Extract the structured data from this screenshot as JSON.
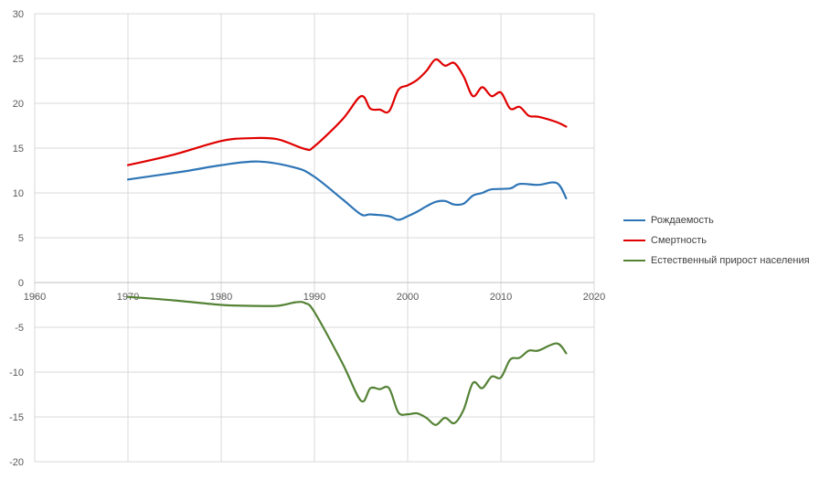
{
  "chart_data": {
    "type": "line",
    "title": "",
    "xlabel": "",
    "ylabel": "",
    "xlim": [
      1960,
      2020
    ],
    "ylim": [
      -20,
      30
    ],
    "x_ticks": [
      1960,
      1970,
      1980,
      1990,
      2000,
      2010,
      2020
    ],
    "y_ticks": [
      30,
      25,
      20,
      15,
      10,
      5,
      0,
      -5,
      -10,
      -15,
      -20
    ],
    "grid": "vertical and horizontal",
    "legend_position": "right",
    "series": [
      {
        "name": "Рождаемость",
        "color": "#2e75b6",
        "points": [
          [
            1970,
            11.5
          ],
          [
            1976,
            12.4
          ],
          [
            1980,
            13.1
          ],
          [
            1984,
            13.5
          ],
          [
            1988,
            12.8
          ],
          [
            1990,
            11.8
          ],
          [
            1993,
            9.3
          ],
          [
            1995,
            7.6
          ],
          [
            1996,
            7.6
          ],
          [
            1998,
            7.4
          ],
          [
            1999,
            7.0
          ],
          [
            2000,
            7.4
          ],
          [
            2001,
            7.9
          ],
          [
            2002,
            8.5
          ],
          [
            2003,
            9.0
          ],
          [
            2004,
            9.1
          ],
          [
            2005,
            8.7
          ],
          [
            2006,
            8.8
          ],
          [
            2007,
            9.7
          ],
          [
            2008,
            10.0
          ],
          [
            2009,
            10.4
          ],
          [
            2011,
            10.5
          ],
          [
            2012,
            11.0
          ],
          [
            2014,
            10.9
          ],
          [
            2016,
            11.1
          ],
          [
            2017,
            9.4
          ]
        ]
      },
      {
        "name": "Смертность",
        "color": "#e00000",
        "points": [
          [
            1970,
            13.1
          ],
          [
            1975,
            14.3
          ],
          [
            1980,
            15.8
          ],
          [
            1983,
            16.1
          ],
          [
            1986,
            16.0
          ],
          [
            1989,
            14.9
          ],
          [
            1990,
            15.2
          ],
          [
            1993,
            18.2
          ],
          [
            1995,
            20.8
          ],
          [
            1996,
            19.4
          ],
          [
            1997,
            19.3
          ],
          [
            1998,
            19.1
          ],
          [
            1999,
            21.5
          ],
          [
            2000,
            22.0
          ],
          [
            2001,
            22.6
          ],
          [
            2002,
            23.6
          ],
          [
            2003,
            24.9
          ],
          [
            2004,
            24.2
          ],
          [
            2005,
            24.5
          ],
          [
            2006,
            23.0
          ],
          [
            2007,
            20.8
          ],
          [
            2008,
            21.8
          ],
          [
            2009,
            20.8
          ],
          [
            2010,
            21.2
          ],
          [
            2011,
            19.4
          ],
          [
            2012,
            19.6
          ],
          [
            2013,
            18.6
          ],
          [
            2014,
            18.5
          ],
          [
            2016,
            17.9
          ],
          [
            2017,
            17.4
          ]
        ]
      },
      {
        "name": "Естественный прирост населения",
        "color": "#548235",
        "points": [
          [
            1970,
            -1.6
          ],
          [
            1975,
            -2.0
          ],
          [
            1980,
            -2.5
          ],
          [
            1983,
            -2.6
          ],
          [
            1986,
            -2.6
          ],
          [
            1988,
            -2.2
          ],
          [
            1989,
            -2.3
          ],
          [
            1990,
            -3.3
          ],
          [
            1993,
            -9.0
          ],
          [
            1995,
            -13.2
          ],
          [
            1996,
            -11.8
          ],
          [
            1997,
            -11.9
          ],
          [
            1998,
            -11.8
          ],
          [
            1999,
            -14.5
          ],
          [
            2000,
            -14.7
          ],
          [
            2001,
            -14.6
          ],
          [
            2002,
            -15.1
          ],
          [
            2003,
            -15.9
          ],
          [
            2004,
            -15.1
          ],
          [
            2005,
            -15.7
          ],
          [
            2006,
            -14.2
          ],
          [
            2007,
            -11.2
          ],
          [
            2008,
            -11.8
          ],
          [
            2009,
            -10.5
          ],
          [
            2010,
            -10.6
          ],
          [
            2011,
            -8.6
          ],
          [
            2012,
            -8.4
          ],
          [
            2013,
            -7.6
          ],
          [
            2014,
            -7.6
          ],
          [
            2016,
            -6.8
          ],
          [
            2017,
            -7.9
          ]
        ]
      }
    ]
  }
}
